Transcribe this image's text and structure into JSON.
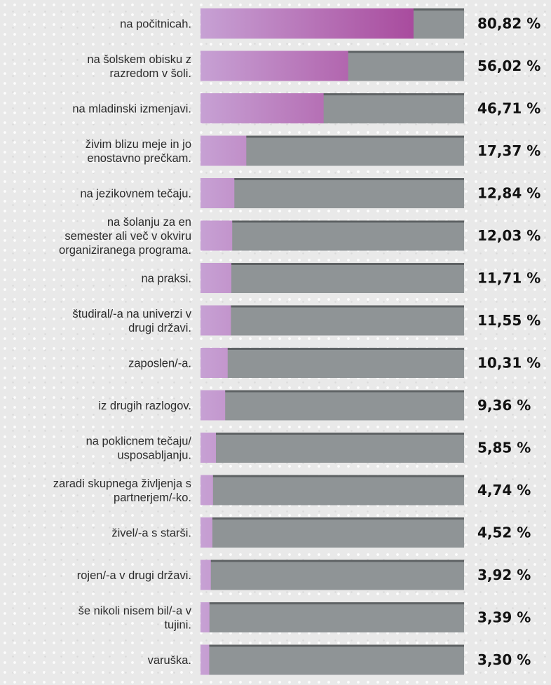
{
  "chart_data": {
    "type": "bar",
    "orientation": "horizontal",
    "categories": [
      [
        "na počitnicah."
      ],
      [
        "na šolskem obisku z",
        "razredom v šoli."
      ],
      [
        "na mladinski izmenjavi."
      ],
      [
        "živim blizu meje in jo",
        "enostavno prečkam."
      ],
      [
        "na jezikovnem tečaju."
      ],
      [
        "na šolanju za en",
        "semester ali več v okviru",
        "organiziranega programa."
      ],
      [
        "na praksi."
      ],
      [
        "študiral/-a na univerzi v",
        "drugi državi."
      ],
      [
        "zaposlen/-a."
      ],
      [
        "iz drugih razlogov."
      ],
      [
        "na poklicnem tečaju/",
        "usposabljanju."
      ],
      [
        "zaradi skupnega življenja s",
        "partnerjem/-ko."
      ],
      [
        "živel/-a s starši."
      ],
      [
        "rojen/-a v drugi državi."
      ],
      [
        "še nikoli nisem bil/-a v",
        "tujini."
      ],
      [
        "varuška."
      ]
    ],
    "values": [
      80.82,
      56.02,
      46.71,
      17.37,
      12.84,
      12.03,
      11.71,
      11.55,
      10.31,
      9.36,
      5.85,
      4.74,
      4.52,
      3.92,
      3.39,
      3.3
    ],
    "value_labels": [
      "80,82 %",
      "56,02 %",
      "46,71 %",
      "17,37 %",
      "12,84 %",
      "12,03 %",
      "11,71 %",
      "11,55 %",
      "10,31 %",
      "9,36 %",
      "5,85 %",
      "4,74 %",
      "4,52 %",
      "3,92 %",
      "3,39 %",
      "3,30 %"
    ],
    "xlim": [
      0,
      100
    ],
    "colors": {
      "bar_start": "#c7a1d4",
      "bar_end": "#a84a9d",
      "track": "#8f9496",
      "track_top": "#5e6264"
    }
  }
}
